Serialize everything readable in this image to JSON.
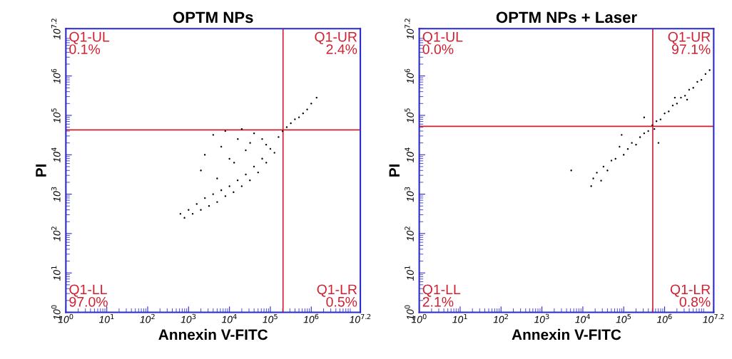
{
  "chart_data": [
    {
      "type": "scatter",
      "title": "OPTM NPs",
      "xlabel": "Annexin V-FITC",
      "ylabel": "PI",
      "log": "xy",
      "grid": false,
      "legend": false,
      "marker": "circle",
      "xlim": [
        1,
        15848932
      ],
      "ylim": [
        1,
        15848932
      ],
      "xticks": [
        {
          "value": 1,
          "label": "10$^{0}$"
        },
        {
          "value": 10,
          "label": "10$^{1}$"
        },
        {
          "value": 100,
          "label": "10$^{2}$"
        },
        {
          "value": 1000,
          "label": "10$^{3}$"
        },
        {
          "value": 10000,
          "label": "10$^{4}$"
        },
        {
          "value": 100000,
          "label": "10$^{5}$"
        },
        {
          "value": 1000000,
          "label": "10$^{6}$"
        },
        {
          "value": 15848932,
          "label": "10$^{7.2}$"
        }
      ],
      "yticks": [
        {
          "value": 1,
          "label": "10$^{0}$"
        },
        {
          "value": 10,
          "label": "10$^{1}$"
        },
        {
          "value": 100,
          "label": "10$^{2}$"
        },
        {
          "value": 1000,
          "label": "10$^{3}$"
        },
        {
          "value": 10000,
          "label": "10$^{4}$"
        },
        {
          "value": 100000,
          "label": "10$^{5}$"
        },
        {
          "value": 1000000,
          "label": "10$^{6}$"
        },
        {
          "value": 15848932,
          "label": "10$^{7.2}$"
        }
      ],
      "ref_lines": [
        {
          "axis": "x",
          "value": 204000,
          "color": "#d02030"
        },
        {
          "axis": "y",
          "value": 42700,
          "color": "#d02030"
        }
      ],
      "annotations": [
        "Q1-UL\n0.1%",
        "Q1-UR\n2.4%",
        "Q1-LL\n97.0%",
        "Q1-LR\n0.5%"
      ],
      "series": [
        {
          "color": "#000000",
          "x": [
            631,
            794,
            1000,
            1259,
            1585,
            1995,
            2512,
            3162,
            3981,
            5012,
            6310,
            7943,
            10000,
            12589,
            15849,
            19953,
            25119,
            31623,
            39811,
            50119,
            63096,
            79433,
            100000,
            125893,
            158489,
            199526,
            251189,
            316228,
            398107,
            501187,
            630957,
            794328,
            1000000,
            1348963,
            2500,
            4000,
            6300,
            7900,
            10000,
            16000,
            20000,
            25000,
            32000,
            40000,
            63000,
            79000,
            2000,
            13000,
            5000
          ],
          "values": [
            316,
            251,
            398,
            316,
            562,
            398,
            794,
            501,
            1000,
            631,
            1259,
            891,
            1585,
            1122,
            2239,
            1585,
            3162,
            2239,
            5012,
            3548,
            7943,
            6310,
            14125,
            11220,
            28184,
            39811,
            50119,
            63096,
            79433,
            89125,
            112202,
            141254,
            199526,
            281838,
            10000,
            32000,
            16000,
            40000,
            7900,
            25000,
            45000,
            13000,
            20000,
            35000,
            25000,
            18000,
            4000,
            6300,
            2500
          ]
        }
      ]
    },
    {
      "type": "scatter",
      "title": "OPTM NPs + Laser",
      "xlabel": "Annexin V-FITC",
      "ylabel": "PI",
      "log": "xy",
      "grid": false,
      "legend": false,
      "marker": "circle",
      "xlim": [
        1,
        15848932
      ],
      "ylim": [
        1,
        15848932
      ],
      "xticks": [
        {
          "value": 1,
          "label": "10$^{0}$"
        },
        {
          "value": 10,
          "label": "10$^{1}$"
        },
        {
          "value": 100,
          "label": "10$^{2}$"
        },
        {
          "value": 1000,
          "label": "10$^{3}$"
        },
        {
          "value": 10000,
          "label": "10$^{4}$"
        },
        {
          "value": 100000,
          "label": "10$^{5}$"
        },
        {
          "value": 1000000,
          "label": "10$^{6}$"
        },
        {
          "value": 15848932,
          "label": "10$^{7.2}$"
        }
      ],
      "yticks": [
        {
          "value": 1,
          "label": "10$^{0}$"
        },
        {
          "value": 10,
          "label": "10$^{1}$"
        },
        {
          "value": 100,
          "label": "10$^{2}$"
        },
        {
          "value": 1000,
          "label": "10$^{3}$"
        },
        {
          "value": 10000,
          "label": "10$^{4}$"
        },
        {
          "value": 100000,
          "label": "10$^{5}$"
        },
        {
          "value": 1000000,
          "label": "10$^{6}$"
        },
        {
          "value": 15848932,
          "label": "10$^{7.2}$"
        }
      ],
      "ref_lines": [
        {
          "axis": "x",
          "value": 513000,
          "color": "#d02030"
        },
        {
          "axis": "y",
          "value": 52500,
          "color": "#d02030"
        }
      ],
      "annotations": [
        "Q1-UL\n0.0%",
        "Q1-UR\n97.1%",
        "Q1-LL\n2.1%",
        "Q1-LR\n0.8%"
      ],
      "series": [
        {
          "color": "#000000",
          "x": [
            5200,
            16000,
            18000,
            22000,
            28000,
            32000,
            40000,
            50000,
            63000,
            79000,
            89000,
            100000,
            126000,
            158000,
            200000,
            251000,
            316000,
            398000,
            501000,
            562000,
            631000,
            794000,
            1000000,
            1260000,
            1580000,
            2000000,
            2510000,
            3160000,
            3980000,
            5010000,
            6310000,
            7940000,
            10000000,
            12600000,
            708000,
            316000,
            1780000,
            3550000
          ],
          "values": [
            4000,
            1600,
            2500,
            3500,
            2200,
            5000,
            4000,
            7100,
            7900,
            16000,
            32000,
            10000,
            14000,
            20000,
            18000,
            28000,
            35000,
            40000,
            56000,
            45000,
            71000,
            79000,
            112000,
            126000,
            178000,
            200000,
            282000,
            316000,
            447000,
            501000,
            708000,
            794000,
            1120000,
            1410000,
            20000,
            89000,
            282000,
            251000
          ]
        }
      ]
    }
  ]
}
